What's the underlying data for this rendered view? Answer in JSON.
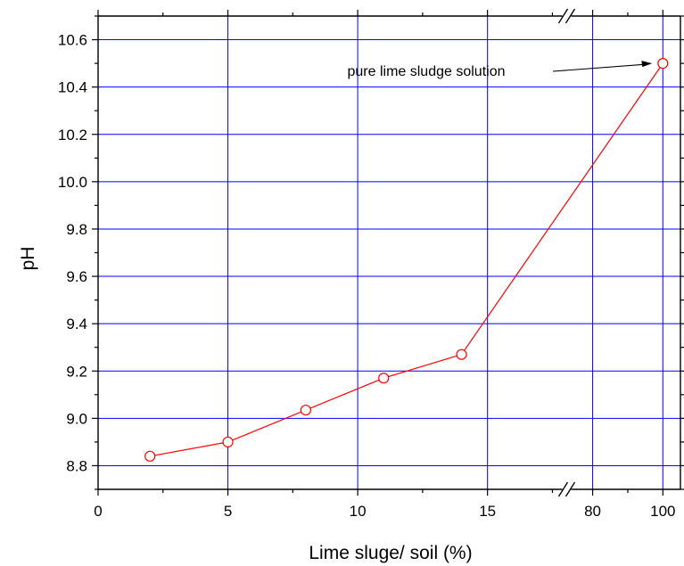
{
  "chart_data": {
    "type": "line",
    "title": "",
    "xlabel": "Lime sluge/ soil (%)",
    "ylabel": "pH",
    "x_axis_break": true,
    "x_segments": [
      {
        "range": [
          0,
          18
        ],
        "ticks": [
          0,
          5,
          10,
          15
        ],
        "tick_labels": [
          "0",
          "5",
          "10",
          "15"
        ]
      },
      {
        "range": [
          73,
          105
        ],
        "ticks": [
          80,
          100
        ],
        "tick_labels": [
          "80",
          "100"
        ]
      }
    ],
    "ylim": [
      8.7,
      10.7
    ],
    "yticks": [
      8.8,
      9.0,
      9.2,
      9.4,
      9.6,
      9.8,
      10.0,
      10.2,
      10.4,
      10.6
    ],
    "ytick_labels": [
      "8.8",
      "9.0",
      "9.2",
      "9.4",
      "9.6",
      "9.8",
      "10.0",
      "10.2",
      "10.4",
      "10.6"
    ],
    "grid": true,
    "grid_color": "#0000ff",
    "series": [
      {
        "color": "#ff0000",
        "marker": "open-circle",
        "x": [
          2,
          5,
          8,
          11,
          14,
          100
        ],
        "y": [
          8.84,
          8.9,
          9.035,
          9.17,
          9.27,
          10.5
        ]
      }
    ],
    "annotations": [
      {
        "text": "pure lime sludge solution",
        "arrow_to": {
          "x": 100,
          "y": 10.5
        }
      }
    ]
  }
}
